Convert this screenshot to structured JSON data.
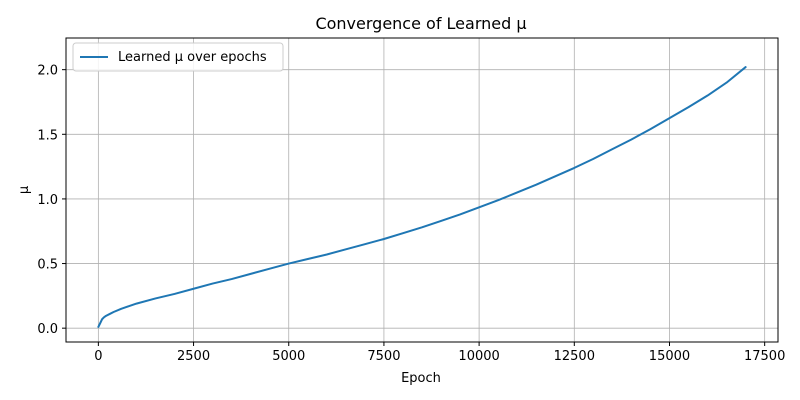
{
  "chart_data": {
    "type": "line",
    "title": "Convergence of Learned μ",
    "xlabel": "Epoch",
    "ylabel": "μ",
    "xlim": [
      -850,
      17850
    ],
    "ylim": [
      -0.107,
      2.245
    ],
    "xticks": [
      0,
      2500,
      5000,
      7500,
      10000,
      12500,
      15000,
      17500
    ],
    "yticks": [
      0.0,
      0.5,
      1.0,
      1.5,
      2.0
    ],
    "xtick_labels": [
      "0",
      "2500",
      "5000",
      "7500",
      "10000",
      "12500",
      "15000",
      "17500"
    ],
    "ytick_labels": [
      "0.0",
      "0.5",
      "1.0",
      "1.5",
      "2.0"
    ],
    "grid": true,
    "legend_position": "upper-left",
    "series": [
      {
        "name": "Learned μ over epochs",
        "color": "#1f77b4",
        "x": [
          0,
          50,
          100,
          150,
          200,
          300,
          400,
          600,
          800,
          1000,
          1500,
          2000,
          2500,
          3000,
          3500,
          4000,
          4500,
          5000,
          5500,
          6000,
          6500,
          7000,
          7500,
          8000,
          8500,
          9000,
          9500,
          10000,
          10500,
          11000,
          11500,
          12000,
          12500,
          13000,
          13500,
          14000,
          14500,
          15000,
          15500,
          16000,
          16500,
          17000
        ],
        "y": [
          0.01,
          0.04,
          0.07,
          0.085,
          0.095,
          0.11,
          0.125,
          0.15,
          0.17,
          0.19,
          0.23,
          0.265,
          0.305,
          0.345,
          0.38,
          0.42,
          0.46,
          0.5,
          0.535,
          0.57,
          0.61,
          0.65,
          0.69,
          0.735,
          0.78,
          0.83,
          0.88,
          0.935,
          0.99,
          1.05,
          1.11,
          1.175,
          1.24,
          1.31,
          1.385,
          1.46,
          1.54,
          1.625,
          1.71,
          1.8,
          1.9,
          2.02
        ]
      }
    ]
  }
}
